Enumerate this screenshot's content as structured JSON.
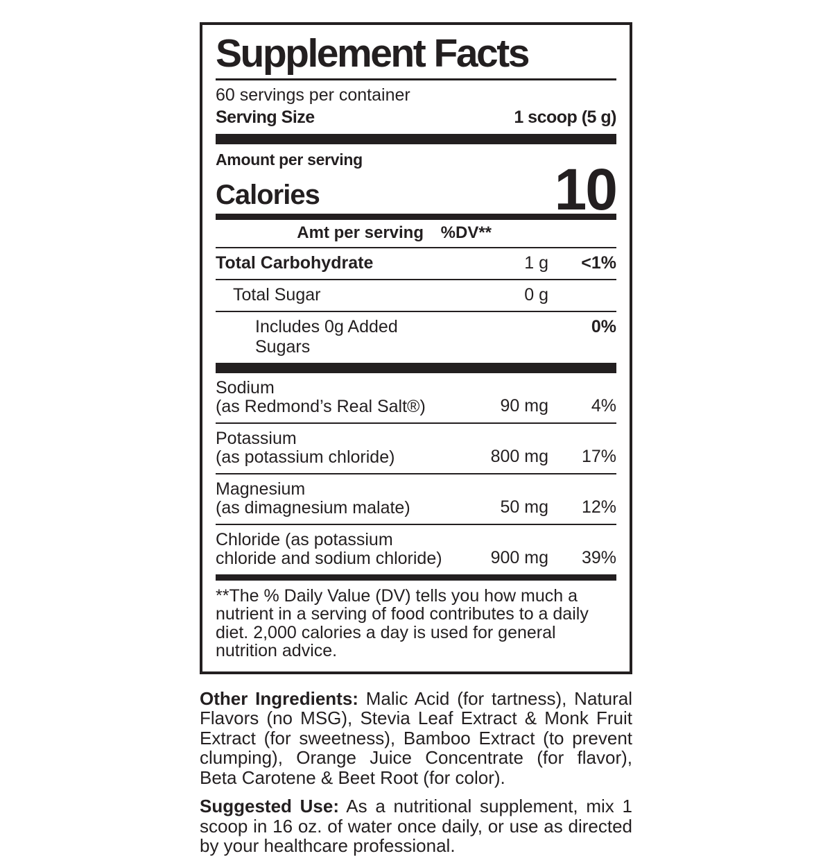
{
  "colors": {
    "ink": "#231f20",
    "background": "#ffffff"
  },
  "panel": {
    "title": "Supplement Facts",
    "servings_per_container": "60 servings per container",
    "serving_size": {
      "label": "Serving Size",
      "value": "1 scoop (5 g)"
    },
    "amount_per_serving_label": "Amount per serving",
    "calories": {
      "label": "Calories",
      "value": "10"
    },
    "columns": {
      "amt": "Amt per serving",
      "dv": "%DV**"
    },
    "rows": [
      {
        "name": "Total Carbohydrate",
        "amt": "1 g",
        "dv": "<1%"
      },
      {
        "name": "Total Sugar",
        "amt": "0 g",
        "dv": ""
      },
      {
        "name": "Includes 0g Added Sugars",
        "amt": "",
        "dv": "0%"
      }
    ],
    "minerals": [
      {
        "name_line1": "Sodium",
        "name_line2": "(as Redmond’s Real Salt®)",
        "amt": "90 mg",
        "dv": "4%"
      },
      {
        "name_line1": "Potassium",
        "name_line2": "(as potassium chloride)",
        "amt": "800 mg",
        "dv": "17%"
      },
      {
        "name_line1": "Magnesium",
        "name_line2": "(as dimagnesium malate)",
        "amt": "50 mg",
        "dv": "12%"
      },
      {
        "name_line1": "Chloride (as potassium",
        "name_line2": "chloride and sodium chloride)",
        "amt": "900 mg",
        "dv": "39%"
      }
    ],
    "footnote": "**The % Daily Value (DV) tells you how much a nutrient in a serving of food contributes to a daily diet. 2,000 calories a day is used for general nutrition advice."
  },
  "sections": {
    "other_ingredients": {
      "label": "Other Ingredients:",
      "text": "Malic Acid (for tartness), Natural Flavors (no MSG), Stevia Leaf Extract & Monk Fruit Extract (for sweetness), Bamboo Extract (to prevent clumping), Orange Juice Concentrate (for flavor), Beta Carotene & Beet Root (for color)."
    },
    "suggested_use": {
      "label": "Suggested Use:",
      "text": "As a nutritional supplement, mix 1 scoop in 16 oz. of water once daily, or use as directed by your healthcare professional."
    }
  }
}
